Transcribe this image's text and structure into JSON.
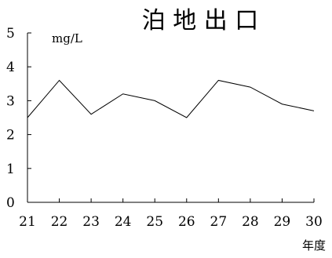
{
  "chart_data": {
    "type": "line",
    "title": "泊 地 出 口",
    "unit": "mg/L",
    "xlabel": "年度",
    "ylabel": "",
    "x": [
      "21",
      "22",
      "23",
      "24",
      "25",
      "26",
      "27",
      "28",
      "29",
      "30"
    ],
    "series": [
      {
        "values": [
          2.5,
          3.6,
          2.6,
          3.2,
          3.0,
          2.5,
          3.6,
          3.4,
          2.9,
          2.7
        ]
      }
    ],
    "yticks": [
      "0",
      "1",
      "2",
      "3",
      "4",
      "5"
    ],
    "ylim": [
      0,
      5
    ],
    "grid": false,
    "legend": "none",
    "line_color": "#000000"
  }
}
